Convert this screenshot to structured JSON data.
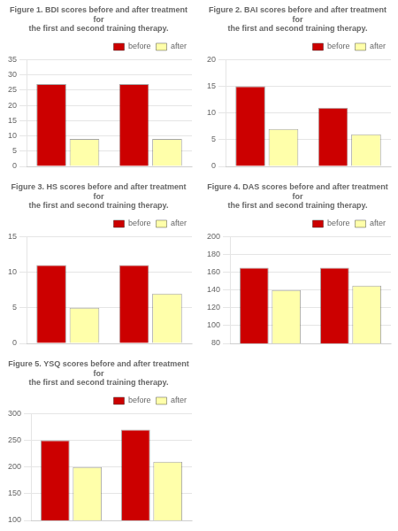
{
  "chart_data": [
    {
      "type": "bar",
      "title": "Figure 1. BDI scores before and after treatment for\nthe first and second training therapy.",
      "categories": [
        null,
        null
      ],
      "series": [
        {
          "name": "before",
          "color": "#CC0000",
          "values": [
            27,
            27
          ]
        },
        {
          "name": "after",
          "color": "#FFFFAA",
          "values": [
            9,
            9
          ]
        }
      ],
      "ylim": [
        0,
        35
      ],
      "yticks": [
        0,
        5,
        10,
        15,
        20,
        25,
        30,
        35
      ],
      "grid": true,
      "legend": "upper right",
      "tick_labels": "y"
    },
    {
      "type": "bar",
      "title": "Figure 2. BAI scores before and after treatment for\nthe first and second training therapy.",
      "categories": [
        null,
        null
      ],
      "series": [
        {
          "name": "before",
          "color": "#CC0000",
          "values": [
            15,
            11
          ]
        },
        {
          "name": "after",
          "color": "#FFFFAA",
          "values": [
            7,
            6
          ]
        }
      ],
      "ylim": [
        0,
        20
      ],
      "yticks": [
        0,
        5,
        10,
        15,
        20
      ],
      "grid": true,
      "legend": "upper right",
      "tick_labels": "y"
    },
    {
      "type": "bar",
      "title": "Figure 3. HS scores before and after treatment for\nthe first and second training therapy.",
      "categories": [
        null,
        null
      ],
      "series": [
        {
          "name": "before",
          "color": "#CC0000",
          "values": [
            11,
            11
          ]
        },
        {
          "name": "after",
          "color": "#FFFFAA",
          "values": [
            5,
            7
          ]
        }
      ],
      "ylim": [
        0,
        15
      ],
      "yticks": [
        0,
        5,
        10,
        15
      ],
      "grid": true,
      "legend": "upper right",
      "tick_labels": "y"
    },
    {
      "type": "bar",
      "title": "Figure 4. DAS scores before and after treatment for\nthe first and second training therapy.",
      "categories": [
        null,
        null
      ],
      "series": [
        {
          "name": "before",
          "color": "#CC0000",
          "values": [
            165,
            165
          ]
        },
        {
          "name": "after",
          "color": "#FFFFAA",
          "values": [
            140,
            145
          ]
        }
      ],
      "ylim": [
        80,
        200
      ],
      "yticks": [
        80,
        100,
        120,
        140,
        160,
        180,
        200
      ],
      "grid": true,
      "legend": "upper right",
      "tick_labels": "y"
    },
    {
      "type": "bar",
      "title": "Figure 5. YSQ scores before and after treatment for\nthe first and second training therapy.",
      "categories": [
        null,
        null
      ],
      "series": [
        {
          "name": "before",
          "color": "#CC0000",
          "values": [
            250,
            270
          ]
        },
        {
          "name": "after",
          "color": "#FFFFAA",
          "values": [
            200,
            210
          ]
        }
      ],
      "ylim": [
        100,
        300
      ],
      "yticks": [
        100,
        150,
        200,
        250,
        300
      ],
      "grid": true,
      "legend": "upper right",
      "tick_labels": "y"
    }
  ]
}
